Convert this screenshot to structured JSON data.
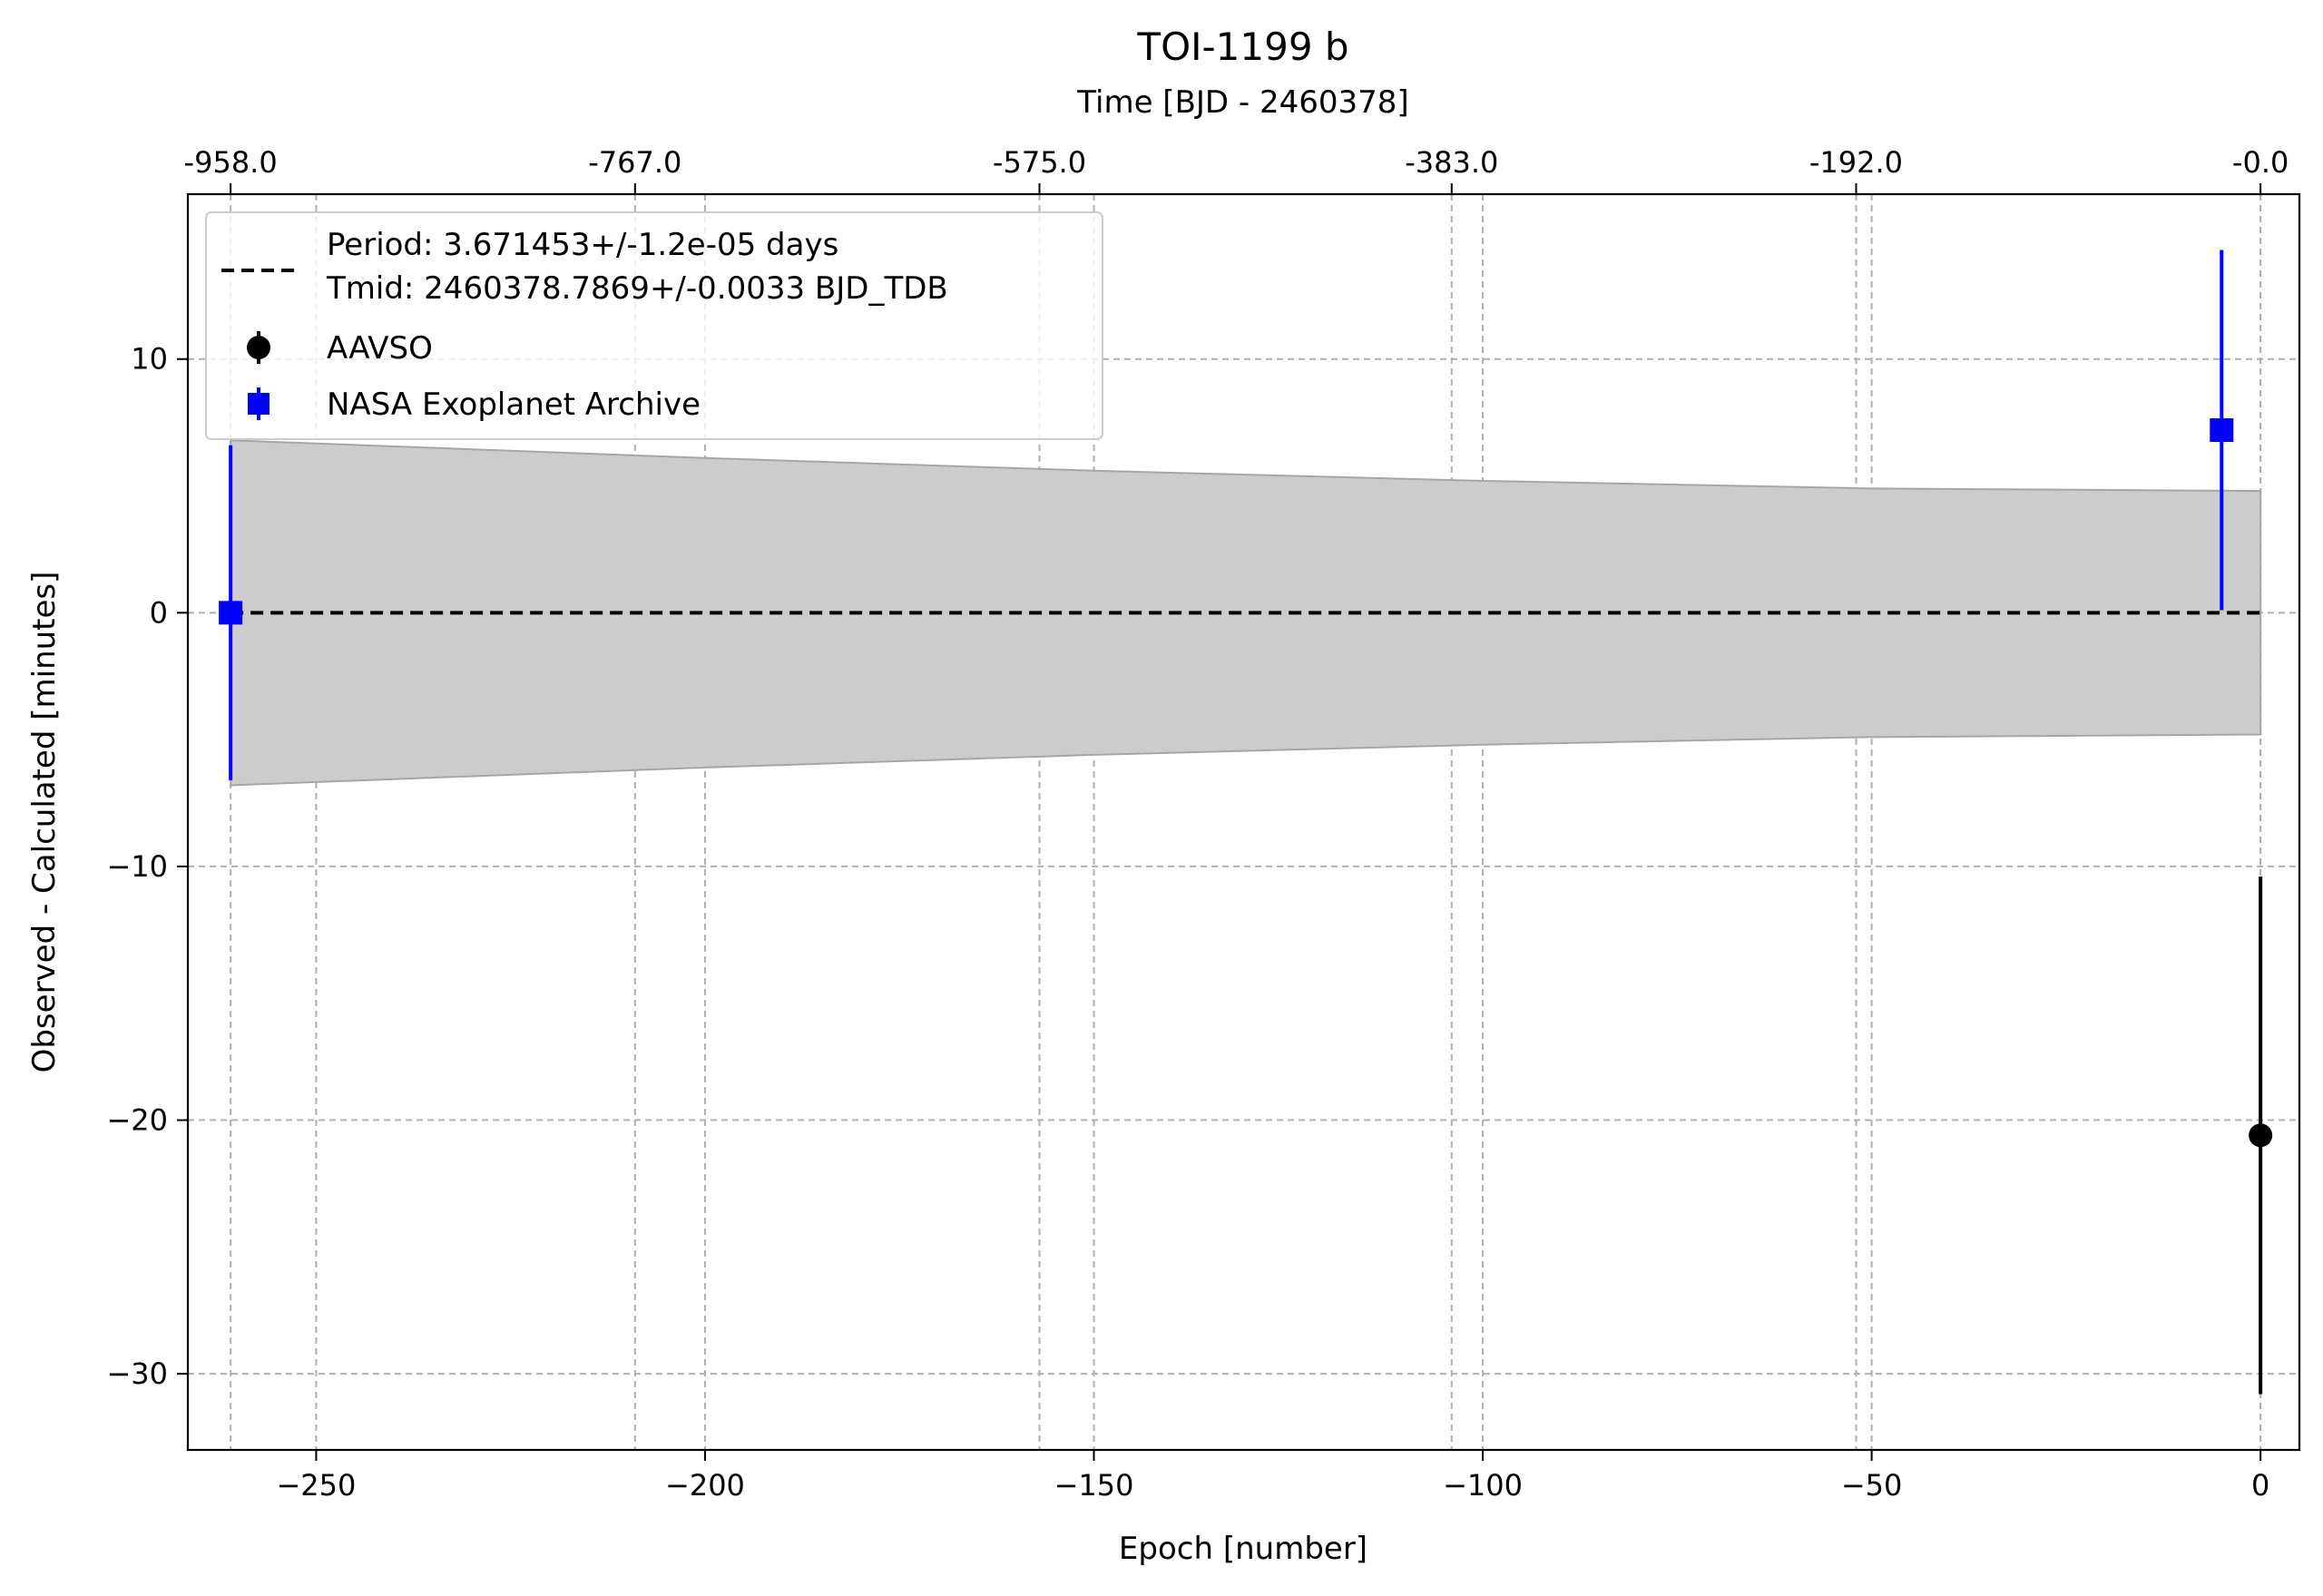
{
  "chart_data": {
    "type": "scatter",
    "title": "TOI-1199 b",
    "xlabel": "Epoch [number]",
    "ylabel": "Observed - Calculated [minutes]",
    "secondary_xlabel": "Time [BJD - 2460378]",
    "xlim": [
      -266.5,
      5
    ],
    "ylim": [
      -33,
      16.5
    ],
    "x_ticks": [
      -250,
      -200,
      -150,
      -100,
      -50,
      0
    ],
    "x_tick_labels": [
      "−250",
      "−200",
      "−150",
      "−100",
      "−50",
      "0"
    ],
    "y_ticks": [
      10,
      0,
      -10,
      -20,
      -30
    ],
    "y_tick_labels": [
      "10",
      "0",
      "−10",
      "−20",
      "−30"
    ],
    "top_ticks_epoch": [
      -261,
      -209,
      -157,
      -104,
      -52,
      0
    ],
    "top_tick_labels": [
      "-958.0",
      "-767.0",
      "-575.0",
      "-383.0",
      "-192.0",
      "-0.0"
    ],
    "grid": true,
    "legend_position": "upper-left",
    "legend": {
      "fit_line_label_1": "Period: 3.671453+/-1.2e-05 days",
      "fit_line_label_2": "Tmid: 2460378.7869+/-0.0033 BJD_TDB",
      "series_1": "AAVSO",
      "series_2": "NASA Exoplanet Archive"
    },
    "fit": {
      "x": [
        -261,
        0
      ],
      "y": [
        0,
        0
      ]
    },
    "uncertainty_band": {
      "x": [
        -261,
        -200,
        -150,
        -100,
        -50,
        0
      ],
      "upper": [
        6.8,
        6.1,
        5.6,
        5.2,
        4.9,
        4.8
      ],
      "lower": [
        -6.8,
        -6.1,
        -5.6,
        -5.2,
        -4.9,
        -4.8
      ]
    },
    "series": [
      {
        "name": "AAVSO",
        "marker": "circle",
        "color": "#000000",
        "points": [
          {
            "x": 0,
            "y": -20.6,
            "yerr": 10.2
          }
        ]
      },
      {
        "name": "NASA Exoplanet Archive",
        "marker": "square",
        "color": "#0000ff",
        "points": [
          {
            "x": -261,
            "y": 0.0,
            "yerr": 6.6
          },
          {
            "x": -5,
            "y": 7.2,
            "yerr": 7.1
          }
        ]
      }
    ],
    "colors": {
      "band_fill": "#cccccc",
      "band_edge": "#a6a6a6",
      "grid": "#b0b0b0",
      "fit_line": "#000000"
    }
  }
}
